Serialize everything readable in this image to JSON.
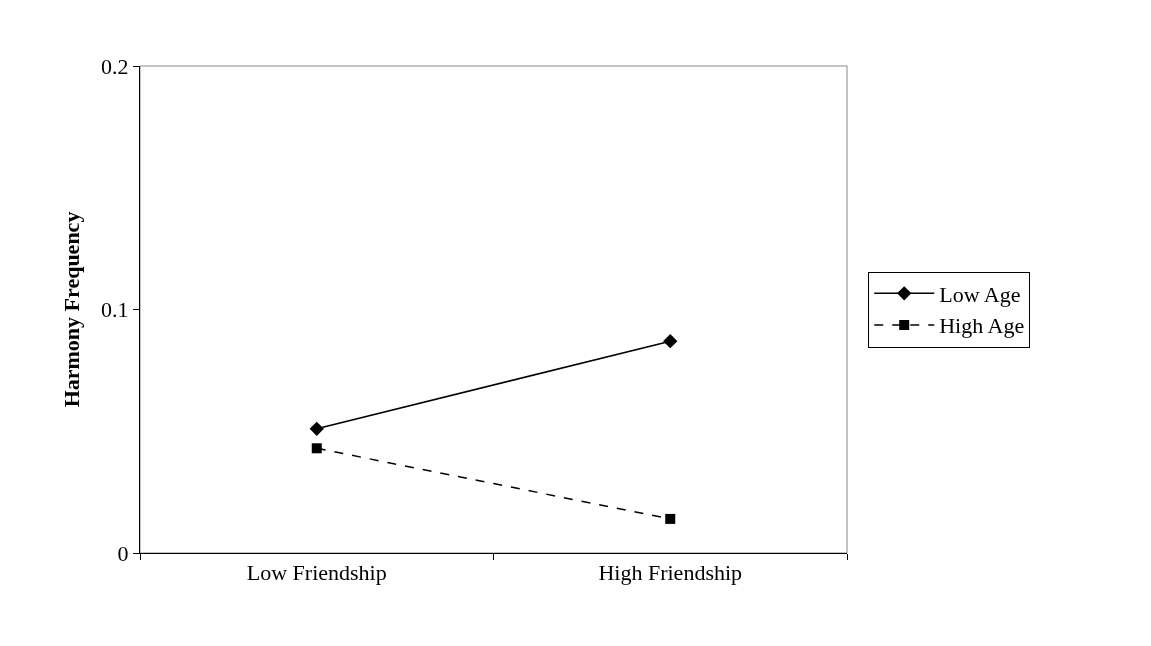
{
  "chart_data": {
    "type": "line",
    "ylabel": "Harmony Frequency",
    "categories": [
      "Low Friendship",
      "High Friendship"
    ],
    "series": [
      {
        "name": "Low Age",
        "color": "#000000",
        "values": [
          0.051,
          0.087
        ],
        "marker": "diamond",
        "line_style": "solid"
      },
      {
        "name": "High Age",
        "color": "#000000",
        "values": [
          0.043,
          0.014
        ],
        "marker": "square",
        "line_style": "dashed"
      }
    ],
    "ylim": [
      0,
      0.2
    ],
    "yticks": [
      0,
      0.1,
      0.2
    ],
    "grid": false,
    "legend": "right"
  }
}
